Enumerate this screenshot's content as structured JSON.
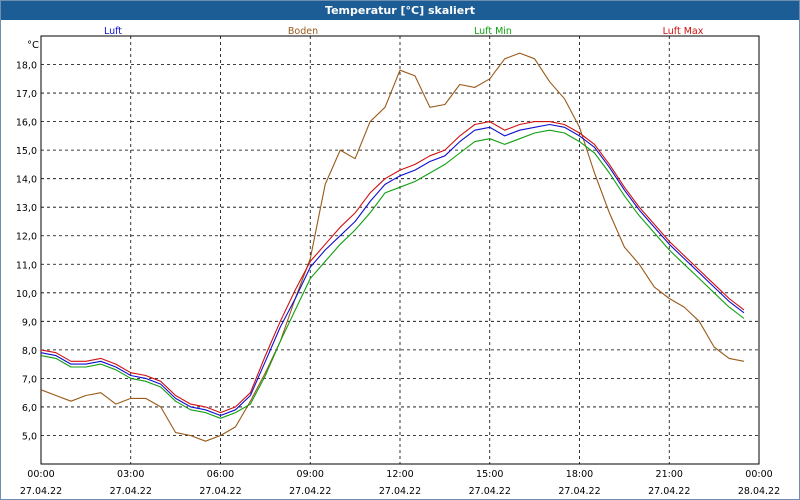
{
  "window": {
    "title": "Temperatur [°C] skaliert"
  },
  "chart_data": {
    "type": "line",
    "title": "Temperatur [°C] skaliert",
    "yunit": "°C",
    "ylim": [
      4.0,
      19.0
    ],
    "yticks": [
      "5,0",
      "6,0",
      "7,0",
      "8,0",
      "9,0",
      "10,0",
      "11,0",
      "12,0",
      "13,0",
      "14,0",
      "15,0",
      "16,0",
      "17,0",
      "18,0"
    ],
    "xlim_hours": [
      0,
      24
    ],
    "xticks": [
      {
        "time": "00:00",
        "date": "27.04.22"
      },
      {
        "time": "03:00",
        "date": "27.04.22"
      },
      {
        "time": "06:00",
        "date": "27.04.22"
      },
      {
        "time": "09:00",
        "date": "27.04.22"
      },
      {
        "time": "12:00",
        "date": "27.04.22"
      },
      {
        "time": "15:00",
        "date": "27.04.22"
      },
      {
        "time": "18:00",
        "date": "27.04.22"
      },
      {
        "time": "21:00",
        "date": "27.04.22"
      },
      {
        "time": "00:00",
        "date": "28.04.22"
      }
    ],
    "grid": true,
    "legend_position": "top",
    "series": [
      {
        "name": "Luft",
        "color": "#1010d0",
        "x": [
          0,
          0.5,
          1,
          1.5,
          2,
          2.5,
          3,
          3.5,
          4,
          4.5,
          5,
          5.5,
          6,
          6.5,
          7,
          7.5,
          8,
          8.5,
          9,
          9.5,
          10,
          10.5,
          11,
          11.5,
          12,
          12.5,
          13,
          13.5,
          14,
          14.5,
          15,
          15.5,
          16,
          16.5,
          17,
          17.5,
          18,
          18.5,
          19,
          19.5,
          20,
          20.5,
          21,
          21.5,
          22,
          22.5,
          23,
          23.5
        ],
        "values": [
          7.9,
          7.8,
          7.5,
          7.5,
          7.6,
          7.4,
          7.1,
          7.0,
          6.8,
          6.3,
          6.0,
          5.9,
          5.7,
          5.9,
          6.4,
          7.6,
          8.8,
          9.8,
          10.9,
          11.5,
          12.0,
          12.5,
          13.2,
          13.8,
          14.1,
          14.3,
          14.6,
          14.8,
          15.3,
          15.7,
          15.8,
          15.5,
          15.7,
          15.8,
          15.9,
          15.8,
          15.5,
          15.1,
          14.4,
          13.6,
          12.9,
          12.3,
          11.7,
          11.2,
          10.7,
          10.2,
          9.7,
          9.3
        ]
      },
      {
        "name": "Boden",
        "color": "#9a5a1a",
        "x": [
          0,
          0.5,
          1,
          1.5,
          2,
          2.5,
          3,
          3.5,
          4,
          4.5,
          5,
          5.5,
          6,
          6.5,
          7,
          7.5,
          8,
          8.5,
          9,
          9.5,
          10,
          10.5,
          11,
          11.5,
          12,
          12.5,
          13,
          13.5,
          14,
          14.5,
          15,
          15.5,
          16,
          16.5,
          17,
          17.5,
          18,
          18.5,
          19,
          19.5,
          20,
          20.5,
          21,
          21.5,
          22,
          22.5,
          23,
          23.5
        ],
        "values": [
          6.6,
          6.4,
          6.2,
          6.4,
          6.5,
          6.1,
          6.3,
          6.3,
          6.0,
          5.1,
          5.0,
          4.8,
          5.0,
          5.3,
          6.2,
          7.2,
          8.3,
          9.8,
          11.2,
          13.8,
          15.0,
          14.7,
          16.0,
          16.5,
          17.8,
          17.6,
          16.5,
          16.6,
          17.3,
          17.2,
          17.5,
          18.2,
          18.4,
          18.2,
          17.4,
          16.8,
          15.8,
          14.2,
          12.8,
          11.6,
          11.0,
          10.2,
          9.8,
          9.5,
          9.0,
          8.1,
          7.7,
          7.6
        ]
      },
      {
        "name": "Luft Min",
        "color": "#10a010",
        "x": [
          0,
          0.5,
          1,
          1.5,
          2,
          2.5,
          3,
          3.5,
          4,
          4.5,
          5,
          5.5,
          6,
          6.5,
          7,
          7.5,
          8,
          8.5,
          9,
          9.5,
          10,
          10.5,
          11,
          11.5,
          12,
          12.5,
          13,
          13.5,
          14,
          14.5,
          15,
          15.5,
          16,
          16.5,
          17,
          17.5,
          18,
          18.5,
          19,
          19.5,
          20,
          20.5,
          21,
          21.5,
          22,
          22.5,
          23,
          23.5
        ],
        "values": [
          7.8,
          7.7,
          7.4,
          7.4,
          7.5,
          7.3,
          7.0,
          6.9,
          6.7,
          6.2,
          5.9,
          5.8,
          5.6,
          5.8,
          6.1,
          7.1,
          8.3,
          9.4,
          10.5,
          11.1,
          11.7,
          12.2,
          12.8,
          13.5,
          13.7,
          13.9,
          14.2,
          14.5,
          14.9,
          15.3,
          15.4,
          15.2,
          15.4,
          15.6,
          15.7,
          15.6,
          15.3,
          14.9,
          14.2,
          13.4,
          12.7,
          12.1,
          11.5,
          11.0,
          10.5,
          10.0,
          9.5,
          9.1
        ]
      },
      {
        "name": "Luft Max",
        "color": "#d01010",
        "x": [
          0,
          0.5,
          1,
          1.5,
          2,
          2.5,
          3,
          3.5,
          4,
          4.5,
          5,
          5.5,
          6,
          6.5,
          7,
          7.5,
          8,
          8.5,
          9,
          9.5,
          10,
          10.5,
          11,
          11.5,
          12,
          12.5,
          13,
          13.5,
          14,
          14.5,
          15,
          15.5,
          16,
          16.5,
          17,
          17.5,
          18,
          18.5,
          19,
          19.5,
          20,
          20.5,
          21,
          21.5,
          22,
          22.5,
          23,
          23.5
        ],
        "values": [
          8.0,
          7.9,
          7.6,
          7.6,
          7.7,
          7.5,
          7.2,
          7.1,
          6.9,
          6.4,
          6.1,
          6.0,
          5.8,
          6.0,
          6.5,
          7.8,
          9.0,
          10.1,
          11.1,
          11.7,
          12.3,
          12.8,
          13.5,
          14.0,
          14.3,
          14.5,
          14.8,
          15.0,
          15.5,
          15.9,
          16.0,
          15.7,
          15.9,
          16.0,
          16.0,
          15.9,
          15.6,
          15.2,
          14.5,
          13.7,
          13.0,
          12.4,
          11.8,
          11.3,
          10.8,
          10.3,
          9.8,
          9.4
        ]
      }
    ]
  }
}
